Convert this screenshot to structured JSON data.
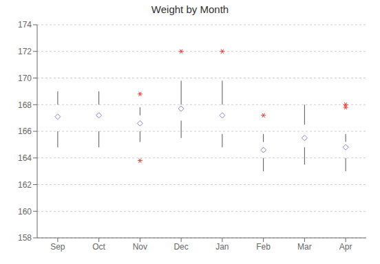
{
  "chart_data": {
    "type": "box",
    "title": "Weight by Month",
    "categories": [
      "Sep",
      "Oct",
      "Nov",
      "Dec",
      "Jan",
      "Feb",
      "Mar",
      "Apr"
    ],
    "q1": [
      166.0,
      166.0,
      166.0,
      166.8,
      165.8,
      164.0,
      164.8,
      164.0
    ],
    "median": [
      167.2,
      167.2,
      166.8,
      167.7,
      167.2,
      164.8,
      165.5,
      164.8
    ],
    "q3": [
      168.0,
      168.0,
      167.2,
      168.0,
      168.0,
      165.2,
      166.5,
      165.2
    ],
    "whisker_low": [
      164.8,
      164.8,
      165.2,
      165.5,
      164.8,
      163.0,
      163.5,
      163.0
    ],
    "whisker_high": [
      169.0,
      169.0,
      167.8,
      169.8,
      169.8,
      165.8,
      168.0,
      165.8
    ],
    "mean": [
      167.1,
      167.2,
      166.6,
      167.7,
      167.2,
      164.6,
      165.5,
      164.8
    ],
    "outliers": [
      [],
      [],
      [
        168.8,
        163.8
      ],
      [
        172.0
      ],
      [
        172.0
      ],
      [
        167.2
      ],
      [],
      [
        167.8,
        168.0
      ]
    ],
    "ylim": [
      158,
      174
    ],
    "yticks": [
      158,
      160,
      162,
      164,
      166,
      168,
      170,
      172,
      174
    ],
    "grid": true,
    "color": "#d9d9d9"
  }
}
